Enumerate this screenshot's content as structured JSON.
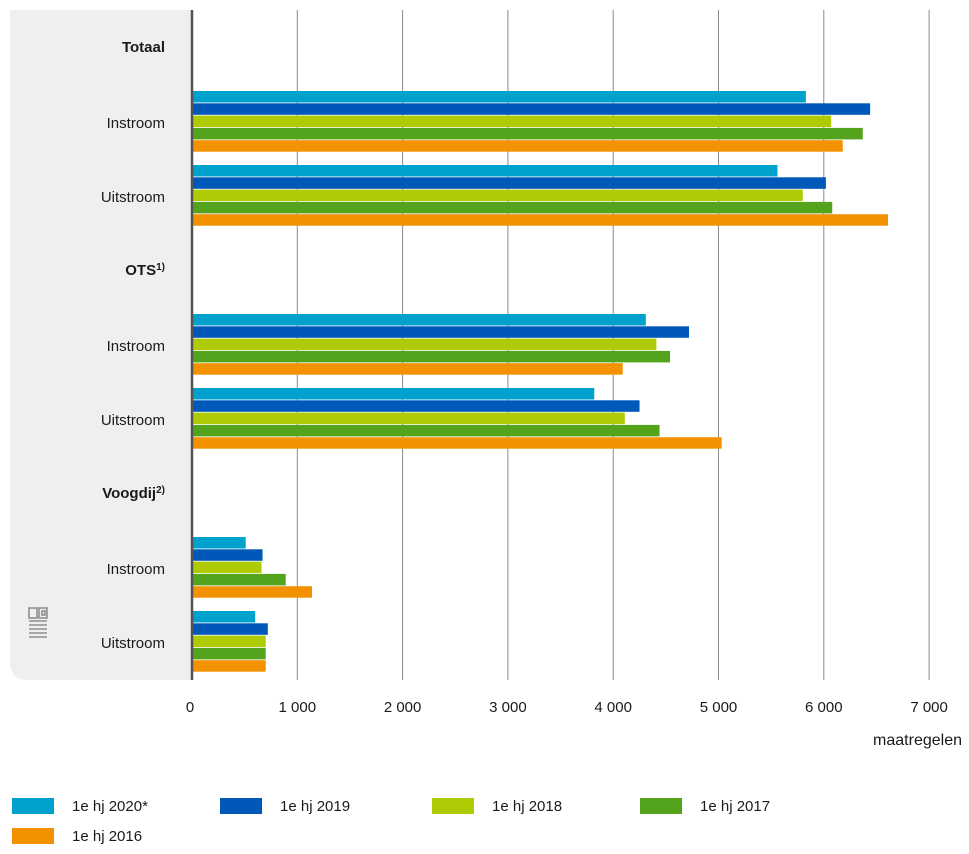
{
  "chart_data": {
    "type": "bar",
    "orientation": "horizontal",
    "xlabel": "maatregelen",
    "xlim": [
      0,
      7000
    ],
    "xticks": [
      0,
      1000,
      2000,
      3000,
      4000,
      5000,
      6000,
      7000
    ],
    "xtick_labels": [
      "0",
      "1 000",
      "2 000",
      "3 000",
      "4 000",
      "5 000",
      "6 000",
      "7 000"
    ],
    "grid": true,
    "legend_position": "bottom",
    "groups": [
      {
        "label": "Totaal",
        "superscript": ""
      },
      {
        "label": "OTS",
        "superscript": "1)"
      },
      {
        "label": "Voogdij",
        "superscript": "2)"
      }
    ],
    "categories": [
      {
        "group": 0,
        "label": "Instroom"
      },
      {
        "group": 0,
        "label": "Uitstroom"
      },
      {
        "group": 1,
        "label": "Instroom"
      },
      {
        "group": 1,
        "label": "Uitstroom"
      },
      {
        "group": 2,
        "label": "Instroom"
      },
      {
        "group": 2,
        "label": "Uitstroom"
      }
    ],
    "series": [
      {
        "name": "1e hj 2020*",
        "color": "#00a1cd",
        "values": [
          5830,
          5560,
          4310,
          3820,
          510,
          600
        ]
      },
      {
        "name": "1e hj 2019",
        "color": "#0058b8",
        "values": [
          6440,
          6020,
          4720,
          4250,
          670,
          720
        ]
      },
      {
        "name": "1e hj 2018",
        "color": "#afcb05",
        "values": [
          6070,
          5800,
          4410,
          4110,
          660,
          700
        ]
      },
      {
        "name": "1e hj 2017",
        "color": "#53a31d",
        "values": [
          6370,
          6080,
          4540,
          4440,
          890,
          700
        ]
      },
      {
        "name": "1e hj 2016",
        "color": "#f39200",
        "values": [
          6180,
          6610,
          4090,
          5030,
          1140,
          700
        ]
      }
    ]
  }
}
